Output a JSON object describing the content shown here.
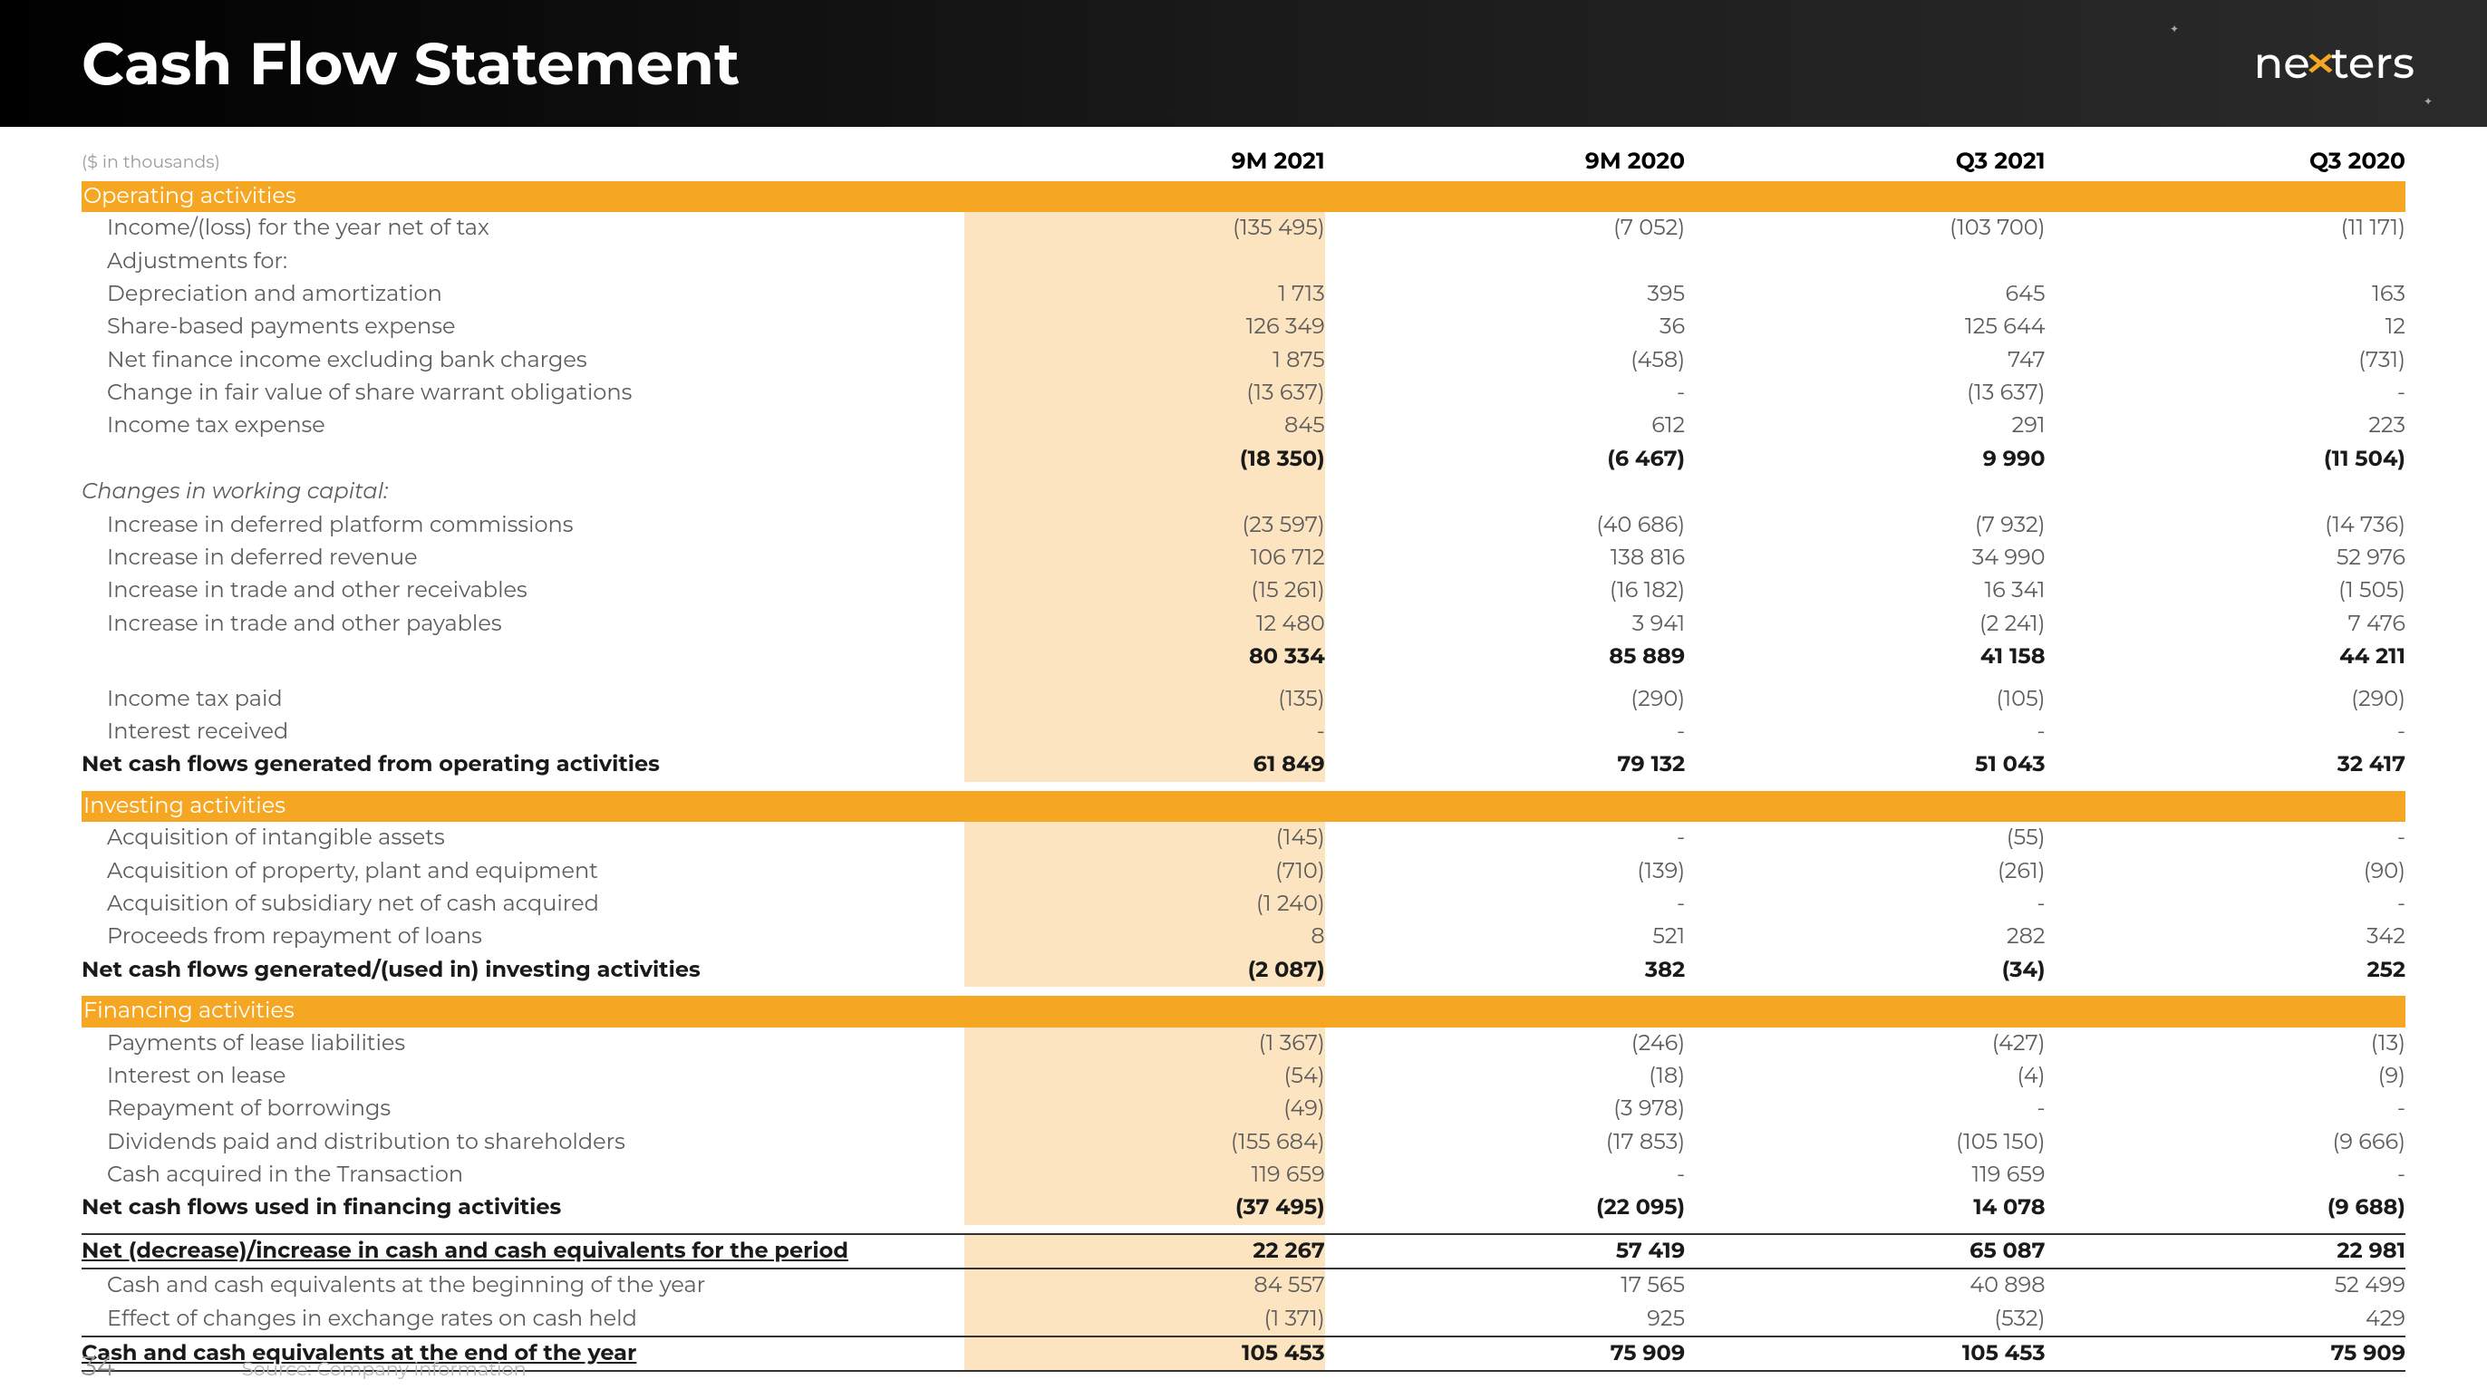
{
  "page": {
    "title": "Cash Flow Statement",
    "logo_pre": "ne",
    "logo_x": "✕",
    "logo_post": "ters",
    "units": "($ in thousands)",
    "page_number": "34",
    "source": "Source: Company information"
  },
  "columns": [
    "9M 2021",
    "9M 2020",
    "Q3 2021",
    "Q3 2020"
  ],
  "colors": {
    "header_bg_start": "#000000",
    "header_bg_end": "#2b2b2b",
    "accent": "#f5a623",
    "highlight": "#fce4c0",
    "text": "#5c5c5c",
    "muted": "#9a9a9a"
  },
  "sections": {
    "op": "Operating activities",
    "inv": "Investing activities",
    "fin": "Financing activities"
  },
  "r": {
    "income_loss": {
      "l": "Income/(loss) for the year net of tax",
      "v": [
        "(135 495)",
        "(7 052)",
        "(103 700)",
        "(11 171)"
      ]
    },
    "adj_for": {
      "l": "Adjustments for:"
    },
    "dep_amort": {
      "l": "Depreciation and amortization",
      "v": [
        "1 713",
        "395",
        "645",
        "163"
      ]
    },
    "sbp": {
      "l": "Share-based payments expense",
      "v": [
        "126 349",
        "36",
        "125 644",
        "12"
      ]
    },
    "nfi": {
      "l": "Net finance income excluding bank charges",
      "v": [
        "1 875",
        "(458)",
        "747",
        "(731)"
      ]
    },
    "cfv": {
      "l": "Change in fair value of share warrant obligations",
      "v": [
        "(13 637)",
        "-",
        "(13 637)",
        "-"
      ]
    },
    "ite": {
      "l": "Income tax expense",
      "v": [
        "845",
        "612",
        "291",
        "223"
      ]
    },
    "sub1": {
      "l": "",
      "v": [
        "(18 350)",
        "(6 467)",
        "9 990",
        "(11 504)"
      ]
    },
    "cwc": {
      "l": "Changes in working capital:"
    },
    "idpc": {
      "l": "Increase in deferred platform commissions",
      "v": [
        "(23 597)",
        "(40 686)",
        "(7 932)",
        "(14 736)"
      ]
    },
    "idr": {
      "l": "Increase in deferred revenue",
      "v": [
        "106 712",
        "138 816",
        "34 990",
        "52 976"
      ]
    },
    "itr": {
      "l": "Increase in trade and other receivables",
      "v": [
        "(15 261)",
        "(16 182)",
        "16 341",
        "(1 505)"
      ]
    },
    "itp": {
      "l": "Increase in trade and other payables",
      "v": [
        "12 480",
        "3 941",
        "(2 241)",
        "7 476"
      ]
    },
    "sub2": {
      "l": "",
      "v": [
        "80 334",
        "85 889",
        "41 158",
        "44 211"
      ]
    },
    "itpaid": {
      "l": "Income tax paid",
      "v": [
        "(135)",
        "(290)",
        "(105)",
        "(290)"
      ]
    },
    "intrec": {
      "l": "Interest received",
      "v": [
        "-",
        "-",
        "-",
        "-"
      ]
    },
    "netop": {
      "l": "Net cash flows generated from operating activities",
      "v": [
        "61 849",
        "79 132",
        "51 043",
        "32 417"
      ]
    },
    "aia": {
      "l": "Acquisition of intangible assets",
      "v": [
        "(145)",
        "-",
        "(55)",
        "-"
      ]
    },
    "appe": {
      "l": "Acquisition of property, plant and equipment",
      "v": [
        "(710)",
        "(139)",
        "(261)",
        "(90)"
      ]
    },
    "asub": {
      "l": "Acquisition of subsidiary net of cash acquired",
      "v": [
        "(1 240)",
        "-",
        "-",
        "-"
      ]
    },
    "prl": {
      "l": "Proceeds from repayment of loans",
      "v": [
        "8",
        "521",
        "282",
        "342"
      ]
    },
    "netinv": {
      "l": "Net cash flows generated/(used in) investing activities",
      "v": [
        "(2 087)",
        "382",
        "(34)",
        "252"
      ]
    },
    "pll": {
      "l": "Payments of lease liabilities",
      "v": [
        "(1 367)",
        "(246)",
        "(427)",
        "(13)"
      ]
    },
    "iol": {
      "l": "Interest on lease",
      "v": [
        "(54)",
        "(18)",
        "(4)",
        "(9)"
      ]
    },
    "rob": {
      "l": "Repayment of borrowings",
      "v": [
        "(49)",
        "(3 978)",
        "-",
        "-"
      ]
    },
    "div": {
      "l": "Dividends paid and distribution to shareholders",
      "v": [
        "(155 684)",
        "(17 853)",
        "(105 150)",
        "(9 666)"
      ]
    },
    "cat": {
      "l": "Cash acquired in the Transaction",
      "v": [
        "119 659",
        "-",
        "119 659",
        "-"
      ]
    },
    "netfin": {
      "l": "Net cash flows used in financing activities",
      "v": [
        "(37 495)",
        "(22 095)",
        "14 078",
        "(9 688)"
      ]
    },
    "netchg": {
      "l": "Net (decrease)/increase in cash and cash equivalents for the period",
      "v": [
        "22 267",
        "57 419",
        "65 087",
        "22 981"
      ]
    },
    "cceb": {
      "l": "Cash and cash equivalents at the beginning of the year",
      "v": [
        "84 557",
        "17 565",
        "40 898",
        "52 499"
      ]
    },
    "fx": {
      "l": "Effect of changes in exchange rates on cash held",
      "v": [
        "(1 371)",
        "925",
        "(532)",
        "429"
      ]
    },
    "ccee": {
      "l": "Cash and cash equivalents at the end of the year",
      "v": [
        "105 453",
        "75 909",
        "105 453",
        "75 909"
      ]
    }
  }
}
